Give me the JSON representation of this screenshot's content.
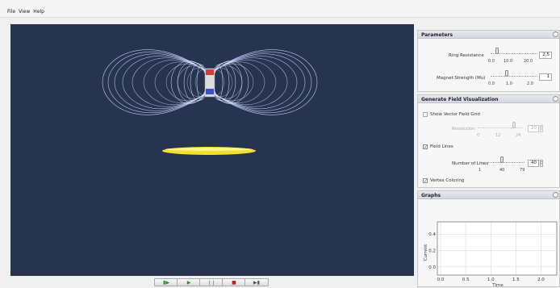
{
  "menu": [
    "File",
    "View",
    "Help"
  ],
  "parameters": {
    "title": "Parameters",
    "ring_resistance": {
      "label": "Ring Resistance",
      "ticks": [
        "0.0",
        "10.0",
        "20.0"
      ],
      "value": "2.5"
    },
    "magnet_strength": {
      "label": "Magnet Strength (Mu)",
      "ticks": [
        "0.0",
        "1.0",
        "2.0"
      ],
      "value": "1"
    }
  },
  "field_visualization": {
    "title": "Generate Field Visualization",
    "show_vector_field_grid": {
      "label": "Show Vector Field Grid",
      "checked": false
    },
    "resolution": {
      "label": "Resolution",
      "ticks": [
        "0",
        "12",
        "24"
      ],
      "value": "20"
    },
    "field_lines": {
      "label": "Field Lines",
      "checked": true
    },
    "number_of_lines": {
      "label": "Number of Lines",
      "ticks": [
        "1",
        "40",
        "79"
      ],
      "value": "40"
    },
    "vertex_coloring": {
      "label": "Vertex Coloring",
      "checked": true
    }
  },
  "graphs": {
    "title": "Graphs",
    "ylabel": "Current",
    "xlabel": "Time",
    "y_ticks": [
      "0.4",
      "0.2",
      "0.0"
    ],
    "x_ticks": [
      "0.0",
      "0.5",
      "1.0",
      "1.5",
      "2.0"
    ]
  },
  "colors": {
    "scene_background": "#273450",
    "field_line": "#c8d2ff",
    "ring": "#f2e12a",
    "north_pole": "#d23c3c",
    "south_pole": "#3c50d2"
  },
  "transport_icons": [
    "step-back-icon",
    "play-icon",
    "pause-icon",
    "stop-icon",
    "step-forward-icon"
  ]
}
